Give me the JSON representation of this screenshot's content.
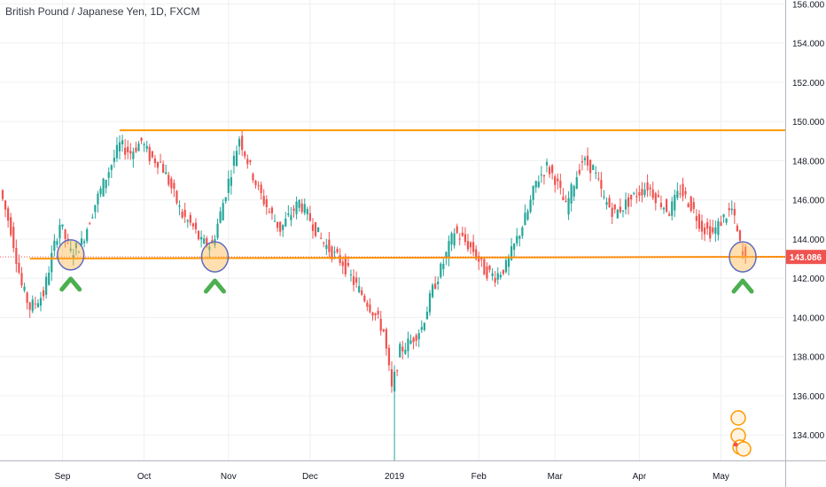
{
  "header": {
    "symbol_title": "British Pound / Japanese Yen, 1D, FXCM"
  },
  "chart_data": {
    "type": "candlestick",
    "title": "British Pound / Japanese Yen, 1D, FXCM",
    "y_ticks": [
      134,
      136,
      138,
      140,
      142,
      144,
      146,
      148,
      150,
      152,
      154,
      156
    ],
    "y_tick_labels": [
      "134.000",
      "136.000",
      "138.000",
      "140.000",
      "142.000",
      "144.000",
      "146.000",
      "148.000",
      "150.000",
      "152.000",
      "154.000",
      "156.000"
    ],
    "ylim": [
      132.7,
      156.2
    ],
    "x_labels": [
      {
        "label": "Sep",
        "day": 22
      },
      {
        "label": "Oct",
        "day": 52
      },
      {
        "label": "Nov",
        "day": 83
      },
      {
        "label": "Dec",
        "day": 113
      },
      {
        "label": "2019",
        "day": 144
      },
      {
        "label": "Feb",
        "day": 175
      },
      {
        "label": "Mar",
        "day": 203
      },
      {
        "label": "Apr",
        "day": 234
      },
      {
        "label": "May",
        "day": 264
      }
    ],
    "last_price": "143.086",
    "last_value": 143.086,
    "resistance_level": 149.55,
    "support_line": {
      "from": [
        143.0,
        143.1
      ],
      "days": [
        10,
        298
      ]
    },
    "highlighted_touches": [
      {
        "day": 25,
        "price": 143.1
      },
      {
        "day": 78,
        "price": 143.0
      },
      {
        "day": 272,
        "price": 143.0
      }
    ],
    "close_path": [
      [
        0,
        146.5
      ],
      [
        4,
        144.5
      ],
      [
        8,
        141.6
      ],
      [
        11,
        140.5
      ],
      [
        16,
        141.2
      ],
      [
        19,
        143.1
      ],
      [
        22,
        144.8
      ],
      [
        26,
        143.3
      ],
      [
        30,
        143.8
      ],
      [
        35,
        145.8
      ],
      [
        40,
        147.5
      ],
      [
        44,
        148.8
      ],
      [
        48,
        148.4
      ],
      [
        52,
        149.0
      ],
      [
        55,
        148.2
      ],
      [
        59,
        147.9
      ],
      [
        63,
        146.6
      ],
      [
        67,
        145.2
      ],
      [
        71,
        144.6
      ],
      [
        74,
        143.8
      ],
      [
        78,
        143.7
      ],
      [
        81,
        145.3
      ],
      [
        85,
        147.5
      ],
      [
        88,
        149.2
      ],
      [
        91,
        148.0
      ],
      [
        95,
        146.5
      ],
      [
        99,
        145.4
      ],
      [
        103,
        144.5
      ],
      [
        106,
        145.1
      ],
      [
        110,
        145.9
      ],
      [
        114,
        145.0
      ],
      [
        118,
        144.0
      ],
      [
        122,
        143.3
      ],
      [
        126,
        142.8
      ],
      [
        130,
        141.8
      ],
      [
        134,
        141.0
      ],
      [
        138,
        140.1
      ],
      [
        141,
        139.3
      ],
      [
        144,
        136.3
      ],
      [
        147,
        138.3
      ],
      [
        151,
        138.8
      ],
      [
        155,
        139.5
      ],
      [
        159,
        141.4
      ],
      [
        163,
        142.8
      ],
      [
        167,
        144.4
      ],
      [
        170,
        144.0
      ],
      [
        174,
        143.4
      ],
      [
        178,
        142.4
      ],
      [
        182,
        142.1
      ],
      [
        186,
        142.6
      ],
      [
        190,
        144.0
      ],
      [
        194,
        145.4
      ],
      [
        197,
        146.9
      ],
      [
        201,
        147.7
      ],
      [
        204,
        147.1
      ],
      [
        208,
        145.6
      ],
      [
        211,
        146.9
      ],
      [
        214,
        148.0
      ],
      [
        218,
        147.6
      ],
      [
        222,
        146.0
      ],
      [
        226,
        145.3
      ],
      [
        230,
        145.8
      ],
      [
        234,
        146.3
      ],
      [
        238,
        146.7
      ],
      [
        242,
        146.0
      ],
      [
        246,
        145.4
      ],
      [
        250,
        146.5
      ],
      [
        254,
        145.7
      ],
      [
        258,
        144.6
      ],
      [
        262,
        144.3
      ],
      [
        266,
        145.1
      ],
      [
        269,
        145.5
      ],
      [
        271,
        144.3
      ],
      [
        273,
        143.086
      ]
    ]
  }
}
